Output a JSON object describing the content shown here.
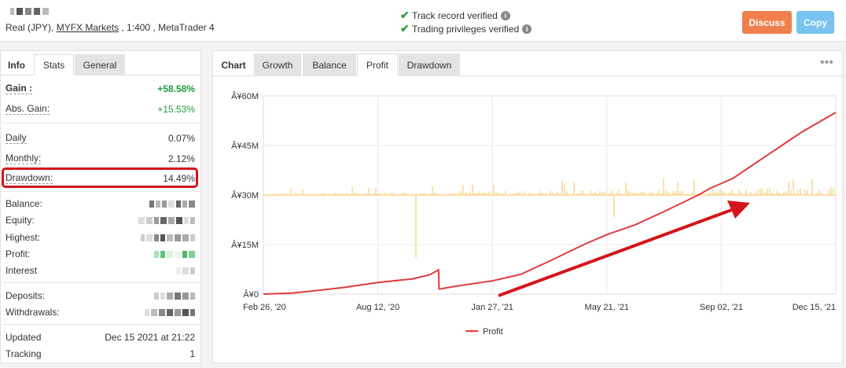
{
  "header": {
    "account_info": "Real (JPY),",
    "broker": "MYFX Markets",
    "account_rest": ", 1:400 , MetaTrader 4",
    "verified": [
      {
        "label": "Track record verified"
      },
      {
        "label": "Trading privileges verified"
      }
    ],
    "discuss_label": "Discuss",
    "copy_label": "Copy",
    "colors": {
      "discuss": "#f07f4d",
      "copy": "#78c3f0",
      "verified": "#2e9e3e"
    }
  },
  "left_tabs": {
    "info": "Info",
    "stats": "Stats",
    "general": "General"
  },
  "stats": {
    "gain": {
      "label": "Gain :",
      "value": "+58.58%"
    },
    "abs_gain": {
      "label": "Abs. Gain:",
      "value": "+15.53%"
    },
    "daily": {
      "label": "Daily",
      "value": "0.07%"
    },
    "monthly": {
      "label": "Monthly:",
      "value": "2.12%"
    },
    "drawdown": {
      "label": "Drawdown:",
      "value": "14.49%"
    },
    "balance": {
      "label": "Balance:"
    },
    "equity": {
      "label": "Equity:"
    },
    "highest": {
      "label": "Highest:"
    },
    "profit": {
      "label": "Profit:"
    },
    "interest": {
      "label": "Interest"
    },
    "deposits": {
      "label": "Deposits:"
    },
    "withdrawals": {
      "label": "Withdrawals:"
    },
    "updated": {
      "label": "Updated",
      "value": "Dec 15 2021 at 21:22"
    },
    "tracking": {
      "label": "Tracking",
      "value": "1"
    }
  },
  "chart_tabs": {
    "chart": "Chart",
    "growth": "Growth",
    "balance": "Balance",
    "profit": "Profit",
    "drawdown": "Drawdown"
  },
  "chart_data": {
    "type": "line",
    "title": "",
    "y_ticks": [
      "Â¥60M",
      "Â¥45M",
      "Â¥30M",
      "Â¥15M",
      "Â¥0"
    ],
    "x_ticks": [
      "Feb 26, '20",
      "Aug 12, '20",
      "Jan 27, '21",
      "May 21, '21",
      "Sep 02, '21",
      "Dec 15, '21"
    ],
    "ylim": [
      0,
      60
    ],
    "series": [
      {
        "name": "Profit",
        "color": "#e03c3c",
        "x": [
          "Feb 26, '20",
          "Apr '20",
          "May '20",
          "Jun '20",
          "Jul '20",
          "Aug 12, '20",
          "Sep '20",
          "Oct '20",
          "Oct '20 drop",
          "Nov '20",
          "Dec '20",
          "Jan 27, '21",
          "Feb '21",
          "Mar '21",
          "Apr '21",
          "May 21, '21",
          "Jun '21",
          "Jul '21",
          "Aug '21",
          "Sep 02, '21",
          "Oct '21",
          "Nov '21",
          "Dec 15, '21"
        ],
        "values": [
          0,
          0.3,
          1.0,
          2.0,
          3.5,
          4.6,
          5.8,
          7.3,
          1.5,
          2.5,
          4.0,
          6.0,
          10.0,
          15.0,
          18.0,
          21.0,
          25.0,
          30.0,
          32.0,
          35.0,
          42.0,
          49.0,
          55.0
        ]
      }
    ],
    "secondary_bars": {
      "color": "#f2c45a",
      "baseline": 30
    },
    "grid": true,
    "legend": "bottom-center"
  }
}
